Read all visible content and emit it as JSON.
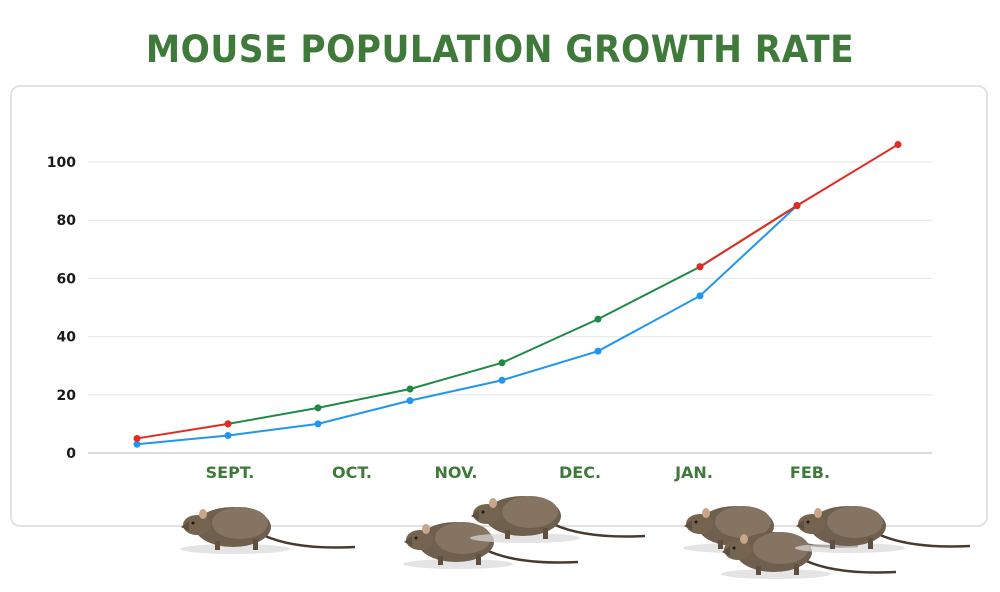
{
  "title": "MOUSE POPULATION GROWTH RATE",
  "colors": {
    "title": "#3f7a3a",
    "red_series": "#e32a22",
    "green_series": "#1e8a45",
    "blue_series": "#2196f0",
    "gridline": "#e6e6e6",
    "axis_text": "#1a1a1a",
    "month_text": "#3f7a3a"
  },
  "y_axis": {
    "ticks": [
      "0",
      "20",
      "40",
      "60",
      "80",
      "100"
    ]
  },
  "x_axis": {
    "labels": [
      "SEPT.",
      "OCT.",
      "NOV.",
      "DEC.",
      "JAN.",
      "FEB."
    ]
  },
  "decorations": {
    "mice_illustrations": 6
  },
  "chart_data": {
    "type": "line",
    "title": "MOUSE POPULATION GROWTH RATE",
    "xlabel": "",
    "ylabel": "",
    "ylim": [
      0,
      100
    ],
    "grid": true,
    "legend": "none",
    "x_points": [
      "start",
      "SEPT.",
      "OCT.",
      "NOV.",
      "DEC.",
      "JAN.",
      "FEB.",
      "end"
    ],
    "categories": [
      "SEPT.",
      "OCT.",
      "NOV.",
      "DEC.",
      "JAN.",
      "FEB."
    ],
    "series": [
      {
        "name": "Red series",
        "color": "#e32a22",
        "values": [
          5,
          10,
          null,
          null,
          null,
          64,
          85,
          106
        ]
      },
      {
        "name": "Green series",
        "color": "#1e8a45",
        "values": [
          null,
          10,
          15.5,
          22,
          31,
          46,
          64,
          85
        ]
      },
      {
        "name": "Blue series",
        "color": "#2196f0",
        "values": [
          3,
          6,
          10,
          18,
          25,
          35,
          54,
          85
        ]
      }
    ]
  }
}
